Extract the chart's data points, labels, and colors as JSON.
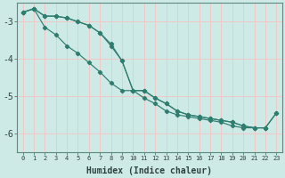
{
  "xlabel": "Humidex (Indice chaleur)",
  "ylabel": "",
  "background_color": "#ceeae6",
  "grid_color": "#f0c8c8",
  "line_color": "#2e7d6e",
  "xlim": [
    -0.5,
    23.5
  ],
  "ylim": [
    -6.5,
    -2.5
  ],
  "yticks": [
    -6,
    -5,
    -4,
    -3
  ],
  "xtick_labels": [
    "0",
    "1",
    "2",
    "3",
    "4",
    "5",
    "6",
    "7",
    "8",
    "9",
    "10",
    "11",
    "12",
    "13",
    "14",
    "15",
    "16",
    "17",
    "18",
    "19",
    "20",
    "21",
    "22",
    "23"
  ],
  "line1_x": [
    0,
    1,
    2,
    3,
    4,
    5,
    6,
    7,
    8,
    9,
    10,
    11,
    12,
    13,
    14,
    15,
    16,
    17,
    18,
    19,
    20,
    21,
    22
  ],
  "line1_y": [
    -2.75,
    -2.65,
    -2.85,
    -2.85,
    -2.9,
    -3.0,
    -3.1,
    -3.3,
    -3.6,
    -4.05,
    -4.85,
    -4.85,
    -5.05,
    -5.2,
    -5.4,
    -5.5,
    -5.55,
    -5.6,
    -5.65,
    -5.7,
    -5.8,
    -5.85,
    -5.85
  ],
  "line2_x": [
    0,
    1,
    2,
    3,
    4,
    5,
    6,
    7,
    8,
    9,
    10,
    11,
    12,
    13,
    14,
    15,
    16,
    17,
    18,
    19,
    20,
    21,
    22,
    23
  ],
  "line2_y": [
    -2.75,
    -2.65,
    -2.85,
    -2.85,
    -2.9,
    -3.0,
    -3.1,
    -3.3,
    -3.65,
    -4.05,
    -4.85,
    -4.85,
    -5.05,
    -5.2,
    -5.4,
    -5.5,
    -5.55,
    -5.6,
    -5.65,
    -5.7,
    -5.8,
    -5.85,
    -5.85,
    -5.45
  ],
  "line3_x": [
    0,
    1,
    2,
    3,
    4,
    5,
    6,
    7,
    8,
    9,
    10,
    11,
    12,
    13,
    14,
    15,
    16,
    17,
    18,
    19,
    20,
    21,
    22,
    23
  ],
  "line3_y": [
    -2.75,
    -2.65,
    -3.15,
    -3.35,
    -3.65,
    -3.85,
    -4.1,
    -4.35,
    -4.65,
    -4.85,
    -4.85,
    -5.05,
    -5.2,
    -5.4,
    -5.5,
    -5.55,
    -5.6,
    -5.65,
    -5.7,
    -5.8,
    -5.85,
    -5.85,
    -5.85,
    -5.45
  ]
}
